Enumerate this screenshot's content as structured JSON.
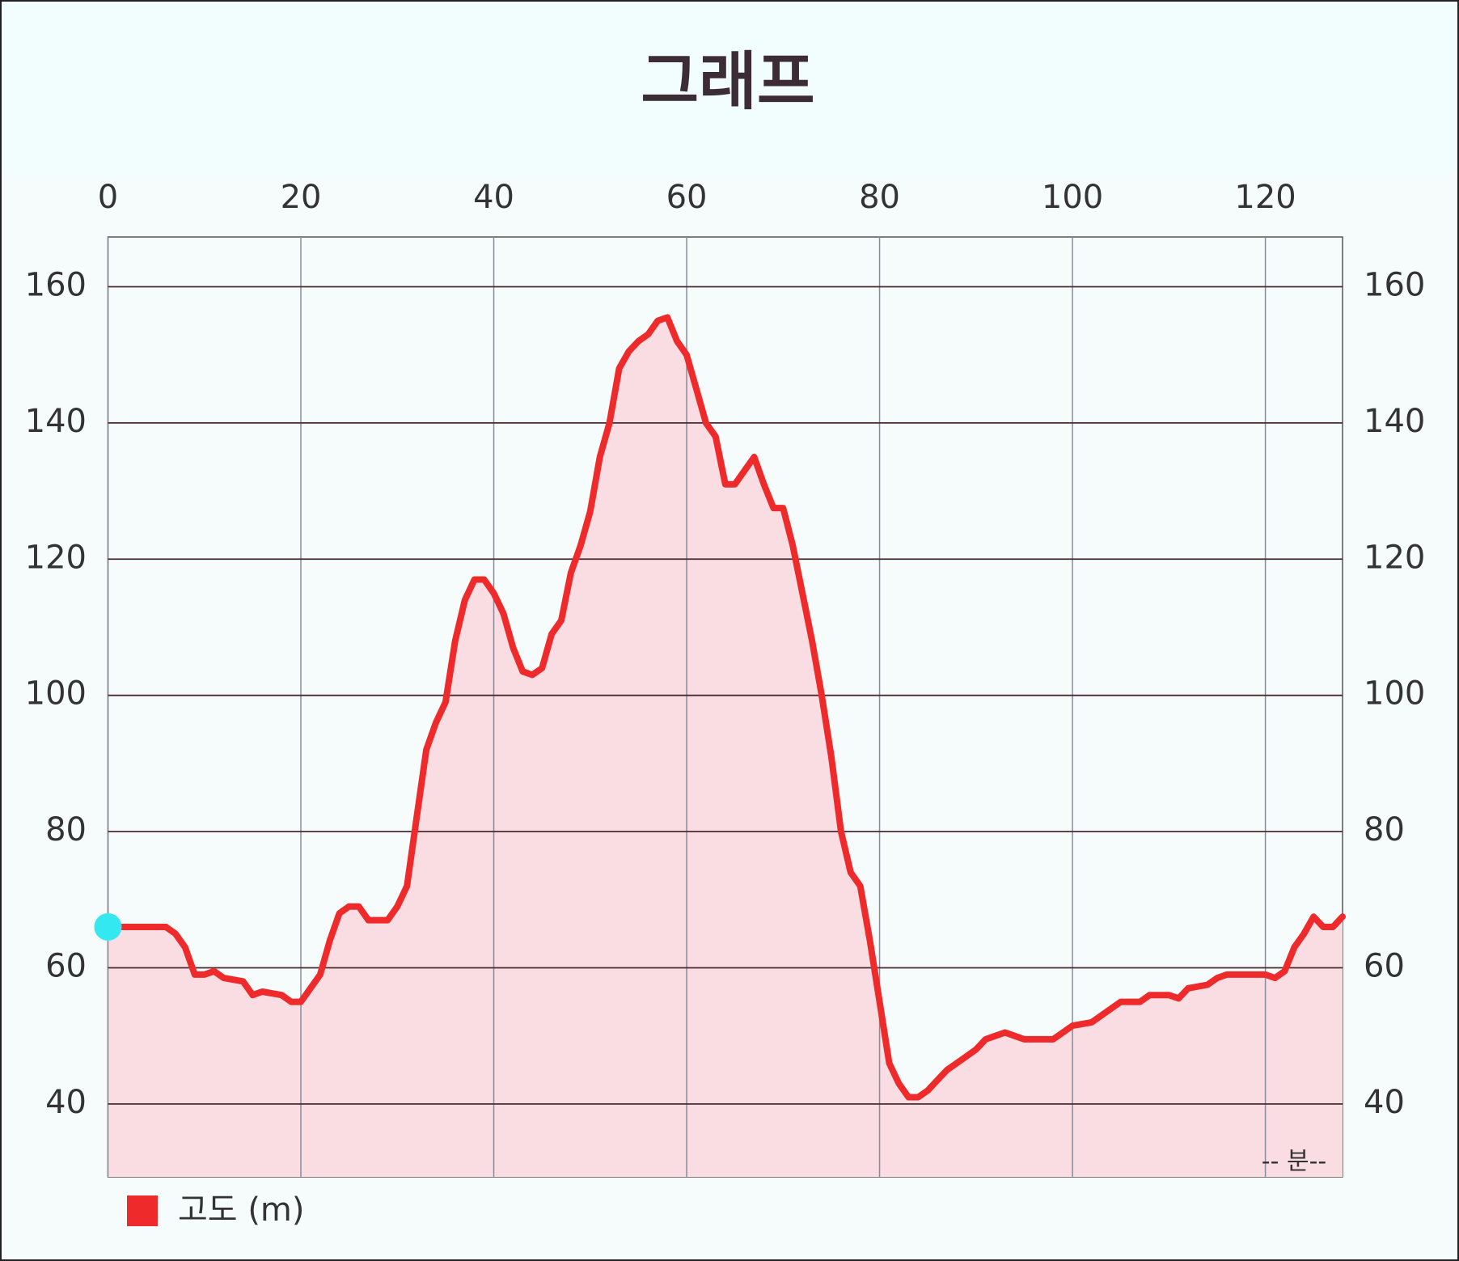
{
  "chart_data": {
    "type": "line",
    "title": "그래프",
    "x_unit": "-- 분--",
    "x": [
      0,
      6,
      7,
      8,
      9,
      10,
      11,
      12,
      14,
      15,
      16,
      18,
      19,
      20,
      21,
      22,
      23,
      24,
      25,
      26,
      27,
      28,
      29,
      30,
      31,
      32,
      33,
      34,
      35,
      36,
      37,
      38,
      39,
      40,
      41,
      42,
      43,
      44,
      45,
      46,
      47,
      48,
      49,
      50,
      51,
      52,
      53,
      54,
      55,
      56,
      57,
      58,
      59,
      60,
      61,
      62,
      63,
      64,
      65,
      66,
      67,
      68,
      69,
      70,
      71,
      72,
      73,
      74,
      75,
      76,
      77,
      78,
      79,
      80,
      81,
      82,
      83,
      84,
      85,
      86,
      87,
      88,
      89,
      90,
      91,
      92,
      93,
      94,
      95,
      97,
      98,
      99,
      100,
      102,
      103,
      105,
      107,
      108,
      110,
      111,
      112,
      114,
      115,
      116,
      118,
      120,
      121,
      122,
      123,
      124,
      125,
      126,
      127,
      128
    ],
    "series": [
      {
        "name": "고도 (m)",
        "color": "#ee2a2a",
        "fill": "#f9dde2",
        "values": [
          66,
          66,
          65,
          63,
          59,
          59,
          59.5,
          58.5,
          58,
          56,
          56.5,
          56,
          55,
          55,
          57,
          59,
          64,
          68,
          69,
          69,
          67,
          67,
          67,
          69,
          72,
          82,
          92,
          96,
          99,
          108,
          114,
          117,
          117,
          115,
          112,
          107,
          103.5,
          103,
          104,
          109,
          111,
          118,
          122,
          127,
          135,
          140,
          148,
          150.5,
          152,
          153,
          155,
          155.5,
          152,
          150,
          145,
          140,
          138,
          131,
          131,
          133,
          135,
          131,
          127.5,
          127.5,
          122,
          115,
          108,
          100,
          91,
          80,
          74,
          72,
          64,
          55,
          46,
          43,
          41,
          41,
          42,
          43.5,
          45,
          46,
          47,
          48,
          49.5,
          50,
          50.5,
          50,
          49.5,
          49.5,
          49.5,
          50.5,
          51.5,
          52,
          53,
          55,
          55,
          56,
          56,
          55.5,
          57,
          57.5,
          58.5,
          59,
          59,
          59,
          58.5,
          59.5,
          63,
          65,
          67.5,
          66,
          66,
          67.5
        ]
      }
    ],
    "xlim": [
      0,
      128
    ],
    "xticks": [
      0,
      20,
      40,
      60,
      80,
      100,
      120
    ],
    "ylim": [
      29.3,
      167.3
    ],
    "yticks": [
      40,
      60,
      80,
      100,
      120,
      140,
      160
    ],
    "grid": true,
    "legend": "bottom-left",
    "start_marker_color": "#33e8f0"
  }
}
